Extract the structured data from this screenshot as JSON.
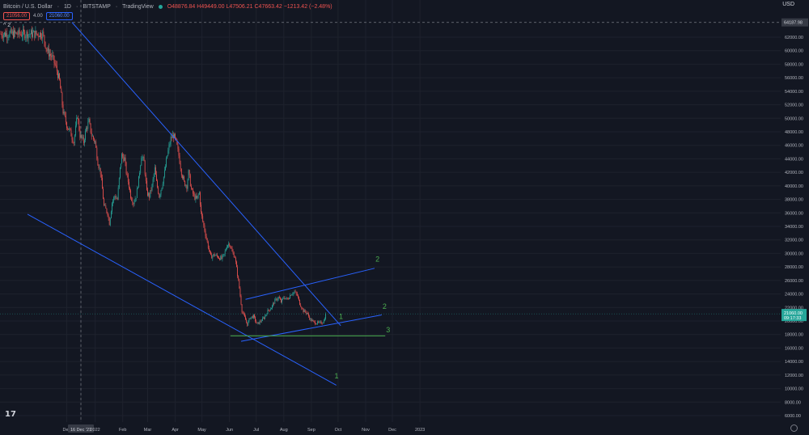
{
  "header": {
    "symbol": "Bitcoin / U.S. Dollar",
    "interval": "1D",
    "exchange": "BITSTAMP",
    "provider": "TradingView",
    "ohlc": "O48876.84 H49449.00 L47506.21 C47663.42 −1213.42 (−2.48%)"
  },
  "price_boxes": {
    "sell": "21056.00",
    "spread": "4.00",
    "buy": "21060.00"
  },
  "indicator_toggle": "^ 2",
  "currency_label": "USD",
  "tv_logo": "17",
  "chart_data": {
    "type": "candlestick",
    "title": "Bitcoin / U.S. Dollar",
    "ylim": [
      5000,
      66000
    ],
    "y_ticks": [
      6000,
      8000,
      10000,
      12000,
      14000,
      16000,
      18000,
      20000,
      22000,
      24000,
      26000,
      28000,
      30000,
      32000,
      34000,
      36000,
      38000,
      40000,
      42000,
      44000,
      46000,
      48000,
      50000,
      52000,
      54000,
      56000,
      58000,
      60000,
      62000
    ],
    "x_ticks": [
      {
        "label": "Dec",
        "day": -16
      },
      {
        "label": "16 Dec '21",
        "day": 0,
        "highlight": true
      },
      {
        "label": "2022",
        "day": 16
      },
      {
        "label": "Feb",
        "day": 47
      },
      {
        "label": "Mar",
        "day": 75
      },
      {
        "label": "Apr",
        "day": 106
      },
      {
        "label": "May",
        "day": 136
      },
      {
        "label": "Jun",
        "day": 167
      },
      {
        "label": "Jul",
        "day": 197
      },
      {
        "label": "Aug",
        "day": 228
      },
      {
        "label": "Sep",
        "day": 259
      },
      {
        "label": "Oct",
        "day": 289
      },
      {
        "label": "Nov",
        "day": 320
      },
      {
        "label": "Dec",
        "day": 350
      },
      {
        "label": "2023",
        "day": 381
      }
    ],
    "crosshair_price": "64187.98",
    "last_price": "21060.00",
    "countdown": "09:17:33",
    "colors": {
      "up": "#26a69a",
      "down": "#ef5350",
      "trendline": "#2962ff",
      "horizontal": "#4caf50",
      "label": "#4caf50"
    },
    "anchors": [
      [
        -43,
        62500
      ],
      [
        -38,
        60000
      ],
      [
        -32,
        59000
      ],
      [
        -28,
        57500
      ],
      [
        -24,
        55500
      ],
      [
        -20,
        51000
      ],
      [
        -16,
        49000
      ],
      [
        -12,
        48000
      ],
      [
        -8,
        46500
      ],
      [
        -4,
        50500
      ],
      [
        -1,
        47500
      ],
      [
        3,
        46500
      ],
      [
        6,
        48500
      ],
      [
        9,
        49500
      ],
      [
        12,
        47500
      ],
      [
        16,
        46500
      ],
      [
        19,
        43500
      ],
      [
        22,
        42000
      ],
      [
        26,
        37000
      ],
      [
        30,
        36000
      ],
      [
        32,
        34500
      ],
      [
        35,
        37500
      ],
      [
        38,
        38500
      ],
      [
        41,
        38000
      ],
      [
        44,
        42500
      ],
      [
        46,
        44500
      ],
      [
        49,
        44000
      ],
      [
        51,
        42000
      ],
      [
        54,
        40000
      ],
      [
        56,
        38500
      ],
      [
        59,
        37500
      ],
      [
        62,
        38500
      ],
      [
        65,
        41000
      ],
      [
        68,
        44500
      ],
      [
        71,
        43500
      ],
      [
        74,
        39000
      ],
      [
        77,
        38500
      ],
      [
        80,
        40000
      ],
      [
        83,
        42500
      ],
      [
        85,
        40500
      ],
      [
        88,
        38500
      ],
      [
        91,
        40000
      ],
      [
        94,
        42000
      ],
      [
        97,
        44500
      ],
      [
        101,
        47000
      ],
      [
        104,
        47500
      ],
      [
        107,
        46500
      ],
      [
        110,
        44500
      ],
      [
        113,
        42000
      ],
      [
        116,
        40500
      ],
      [
        119,
        40000
      ],
      [
        121,
        42000
      ],
      [
        124,
        39500
      ],
      [
        127,
        38500
      ],
      [
        130,
        38000
      ],
      [
        133,
        39000
      ],
      [
        135,
        36000
      ],
      [
        139,
        33500
      ],
      [
        143,
        31000
      ],
      [
        146,
        29500
      ],
      [
        150,
        29800
      ],
      [
        154,
        29500
      ],
      [
        158,
        29200
      ],
      [
        161,
        29800
      ],
      [
        164,
        31200
      ],
      [
        167,
        31500
      ],
      [
        170,
        30200
      ],
      [
        173,
        29500
      ],
      [
        177,
        26000
      ],
      [
        181,
        21500
      ],
      [
        184,
        20500
      ],
      [
        187,
        19500
      ],
      [
        190,
        20500
      ],
      [
        194,
        20700
      ],
      [
        198,
        19500
      ],
      [
        202,
        20000
      ],
      [
        206,
        20500
      ],
      [
        210,
        21500
      ],
      [
        214,
        22000
      ],
      [
        218,
        23000
      ],
      [
        222,
        23500
      ],
      [
        225,
        22800
      ],
      [
        228,
        23500
      ],
      [
        232,
        23200
      ],
      [
        236,
        24000
      ],
      [
        240,
        24300
      ],
      [
        243,
        23800
      ],
      [
        246,
        22600
      ],
      [
        250,
        21500
      ],
      [
        254,
        21200
      ],
      [
        258,
        20200
      ],
      [
        262,
        19800
      ],
      [
        265,
        19700
      ],
      [
        268,
        19700
      ],
      [
        271,
        19800
      ],
      [
        273,
        20000
      ],
      [
        275,
        21060
      ]
    ],
    "trendlines": [
      {
        "name": "1",
        "from": [
          -10,
          64200
        ],
        "to": [
          292,
          19300
        ],
        "label_at": [
          290,
          20300
        ]
      },
      {
        "name": "1",
        "from": [
          -60,
          35800
        ],
        "to": [
          287,
          10500
        ],
        "label_at": [
          285,
          11500
        ]
      },
      {
        "name": "2",
        "from": [
          185,
          23200
        ],
        "to": [
          330,
          27800
        ],
        "label_at": [
          331,
          28800
        ]
      },
      {
        "name": "2",
        "from": [
          180,
          17000
        ],
        "to": [
          338,
          20900
        ],
        "label_at": [
          339,
          21800
        ]
      },
      {
        "name": "3",
        "from": [
          168,
          17800
        ],
        "to": [
          342,
          17800
        ],
        "label_at": [
          343,
          18300
        ]
      }
    ]
  }
}
